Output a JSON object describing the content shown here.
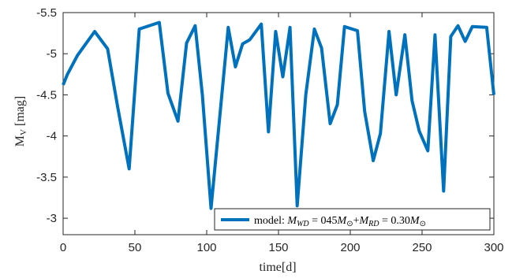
{
  "chart_data": {
    "type": "line",
    "title": "",
    "xlabel": "time[d]",
    "ylabel_main": "M",
    "ylabel_sub": "V",
    "ylabel_unit": " [mag]",
    "xlim": [
      0,
      300
    ],
    "ylim": [
      -5.5,
      -2.8
    ],
    "y_reversed": true,
    "grid": false,
    "legend_position": "bottom-right",
    "x_ticks": [
      0,
      50,
      100,
      150,
      200,
      250,
      300
    ],
    "y_ticks": [
      -5.5,
      -5,
      -4.5,
      -4,
      -3.5,
      -3
    ],
    "series": [
      {
        "name": "model: M_WD = 045M⊙ + M_RD = 0.30M⊙",
        "color": "#0072BD",
        "x": [
          0,
          3,
          10,
          22,
          31,
          38,
          46,
          53,
          67,
          73,
          80,
          86,
          92,
          97,
          103,
          110,
          115,
          120,
          125,
          130,
          138,
          143,
          148,
          153,
          158,
          163,
          169,
          175,
          180,
          186,
          191,
          196,
          205,
          210,
          216,
          221,
          227,
          232,
          238,
          243,
          248,
          254,
          259,
          265,
          270,
          275,
          280,
          285,
          295,
          300
        ],
        "y": [
          -4.62,
          -4.75,
          -4.98,
          -5.27,
          -5.06,
          -4.35,
          -3.6,
          -5.3,
          -5.38,
          -4.52,
          -4.18,
          -5.13,
          -5.34,
          -4.5,
          -3.12,
          -4.4,
          -5.32,
          -4.84,
          -5.12,
          -5.17,
          -5.36,
          -4.05,
          -5.27,
          -4.72,
          -5.32,
          -3.15,
          -4.5,
          -5.3,
          -5.07,
          -4.15,
          -4.38,
          -5.33,
          -5.28,
          -4.3,
          -3.7,
          -4.03,
          -5.27,
          -4.5,
          -5.23,
          -4.43,
          -4.06,
          -3.82,
          -5.23,
          -3.33,
          -5.21,
          -5.34,
          -5.15,
          -5.33,
          -5.32,
          -4.5
        ]
      }
    ]
  }
}
